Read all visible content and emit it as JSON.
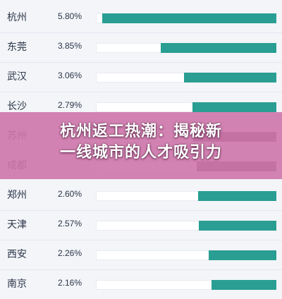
{
  "rows": [
    {
      "city": "杭州",
      "percent": "5.80%",
      "value": 5.8
    },
    {
      "city": "东莞",
      "percent": "3.85%",
      "value": 3.85
    },
    {
      "city": "武汉",
      "percent": "3.06%",
      "value": 3.06
    },
    {
      "city": "长沙",
      "percent": "2.79%",
      "value": 2.79
    },
    {
      "city": "苏州",
      "percent": "",
      "value": null
    },
    {
      "city": "成都",
      "percent": "",
      "value": null
    },
    {
      "city": "郑州",
      "percent": "2.60%",
      "value": 2.6
    },
    {
      "city": "天津",
      "percent": "2.57%",
      "value": 2.57
    },
    {
      "city": "西安",
      "percent": "2.26%",
      "value": 2.26
    },
    {
      "city": "南京",
      "percent": "2.16%",
      "value": 2.16
    }
  ],
  "banner": {
    "title_line1": "杭州返工热潮：揭秘新",
    "title_line2": "一线城市的人才吸引力"
  },
  "colors": {
    "bar_fill": "#2a9e92",
    "bar_fill_obscured": "#6a4a6e",
    "banner_bg": "#ce76aa",
    "background": "#f3f5f9"
  }
}
